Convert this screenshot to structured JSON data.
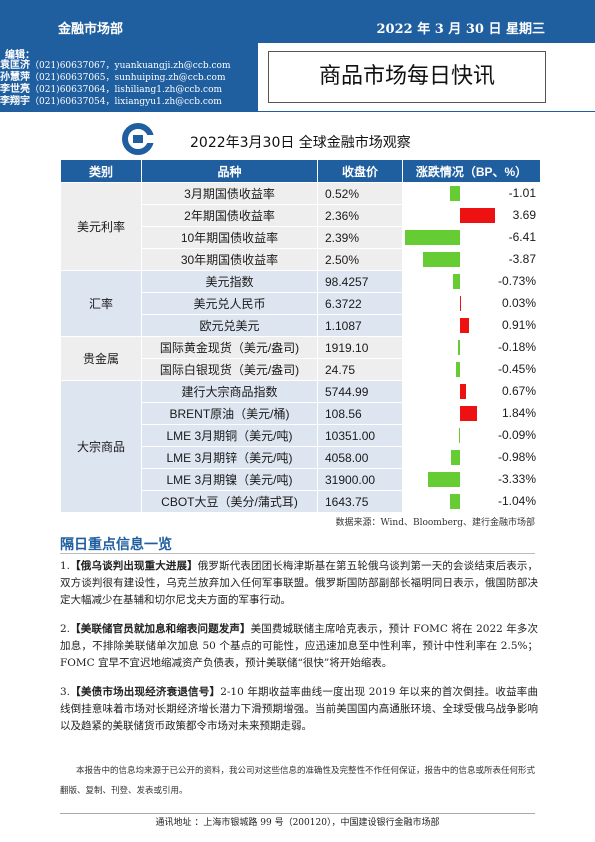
{
  "header": {
    "department": "金融市场部",
    "date": "2022 年 3 月 30 日  星期三",
    "brand_color": "#1f5e9f"
  },
  "editors": {
    "label": "编辑：",
    "list": [
      {
        "name": "袁匡济",
        "contact": "（021)60637067，yuankuangji.zh@ccb.com"
      },
      {
        "name": "孙慧萍",
        "contact": "（021)60637065，sunhuiping.zh@ccb.com"
      },
      {
        "name": "李世亮",
        "contact": "（021)60637064，lishiliang1.zh@ccb.com"
      },
      {
        "name": "李翔宇",
        "contact": "（021)60637054，lixiangyu1.zh@ccb.com"
      }
    ]
  },
  "report_title": "商品市场每日快讯",
  "logo_icon": "ccb-logo-icon",
  "table": {
    "title": "2022年3月30日  全球金融市场观察",
    "headers": [
      "类别",
      "品种",
      "收盘价",
      "涨跌情况（BP、%）"
    ],
    "groups": [
      {
        "category": "美元利率",
        "rows": [
          {
            "item": "3月期国债收益率",
            "close": "0.52%",
            "change": "-1.01",
            "value": -1.01
          },
          {
            "item": "2年期国债收益率",
            "close": "2.36%",
            "change": "3.69",
            "value": 3.69
          },
          {
            "item": "10年期国债收益率",
            "close": "2.39%",
            "change": "-6.41",
            "value": -6.41
          },
          {
            "item": "30年期国债收益率",
            "close": "2.50%",
            "change": "-3.87",
            "value": -3.87
          }
        ]
      },
      {
        "category": "汇率",
        "rows": [
          {
            "item": "美元指数",
            "close": "98.4257",
            "change": "-0.73%",
            "value": -0.73
          },
          {
            "item": "美元兑人民币",
            "close": "6.3722",
            "change": "0.03%",
            "value": 0.03
          },
          {
            "item": "欧元兑美元",
            "close": "1.1087",
            "change": "0.91%",
            "value": 0.91
          }
        ]
      },
      {
        "category": "贵金属",
        "rows": [
          {
            "item": "国际黄金现货（美元/盎司)",
            "close": "1919.10",
            "change": "-0.18%",
            "value": -0.18
          },
          {
            "item": "国际白银现货（美元/盎司)",
            "close": "24.75",
            "change": "-0.45%",
            "value": -0.45
          }
        ]
      },
      {
        "category": "大宗商品",
        "rows": [
          {
            "item": "建行大宗商品指数",
            "close": "5744.99",
            "change": "0.67%",
            "value": 0.67
          },
          {
            "item": "BRENT原油（美元/桶)",
            "close": "108.56",
            "change": "1.84%",
            "value": 1.84
          },
          {
            "item": "LME 3月期铜（美元/吨)",
            "close": "10351.00",
            "change": "-0.09%",
            "value": -0.09
          },
          {
            "item": "LME 3月期锌（美元/吨)",
            "close": "4058.00",
            "change": "-0.98%",
            "value": -0.98
          },
          {
            "item": "LME 3月期镍（美元/吨)",
            "close": "31900.00",
            "change": "-3.33%",
            "value": -3.33
          },
          {
            "item": "CBOT大豆（美分/蒲式耳)",
            "close": "1643.75",
            "change": "-1.04%",
            "value": -1.04
          }
        ]
      }
    ],
    "colors": {
      "positive": "#ee1111",
      "negative": "#66cc33"
    }
  },
  "source": "数据来源：Wind、Bloomberg、建行金融市场部",
  "section_title": "隔日重点信息一览",
  "news": [
    {
      "num": "1.",
      "head": "【俄乌谈判出现重大进展】",
      "body": "俄罗斯代表团团长梅津斯基在第五轮俄乌谈判第一天的会谈结束后表示，双方谈判很有建设性，乌克兰放弃加入任何军事联盟。俄罗斯国防部副部长福明同日表示，俄国防部决定大幅减少在基辅和切尔尼戈夫方面的军事行动。"
    },
    {
      "num": "2.",
      "head": "【美联储官员就加息和缩表问题发声】",
      "body": "美国费城联储主席哈克表示，预计 FOMC 将在 2022 年多次加息，不排除美联储单次加息 50 个基点的可能性，应迅速加息至中性利率，预计中性利率在 2.5%；FOMC 宜早不宜迟地缩减资产负债表，预计美联储“很快”将开始缩表。"
    },
    {
      "num": "3.",
      "head": "【美债市场出现经济衰退信号】",
      "body": "2-10 年期收益率曲线一度出现 2019 年以来的首次倒挂。收益率曲线倒挂意味着市场对长期经济增长潜力下滑预期增强。当前美国国内高通胀环境、全球受俄乌战争影响以及趋紧的美联储货币政策都令市场对未来预期走弱。"
    }
  ],
  "disclaimer": "本报告中的信息均来源于已公开的资料，我公司对这些信息的准确性及完整性不作任何保证，报告中的信息或所表任何形式翻版、复制、刊登、发表或引用。",
  "footer": "通讯地址 ：上海市银城路 99 号（200120），中国建设银行金融市场部"
}
